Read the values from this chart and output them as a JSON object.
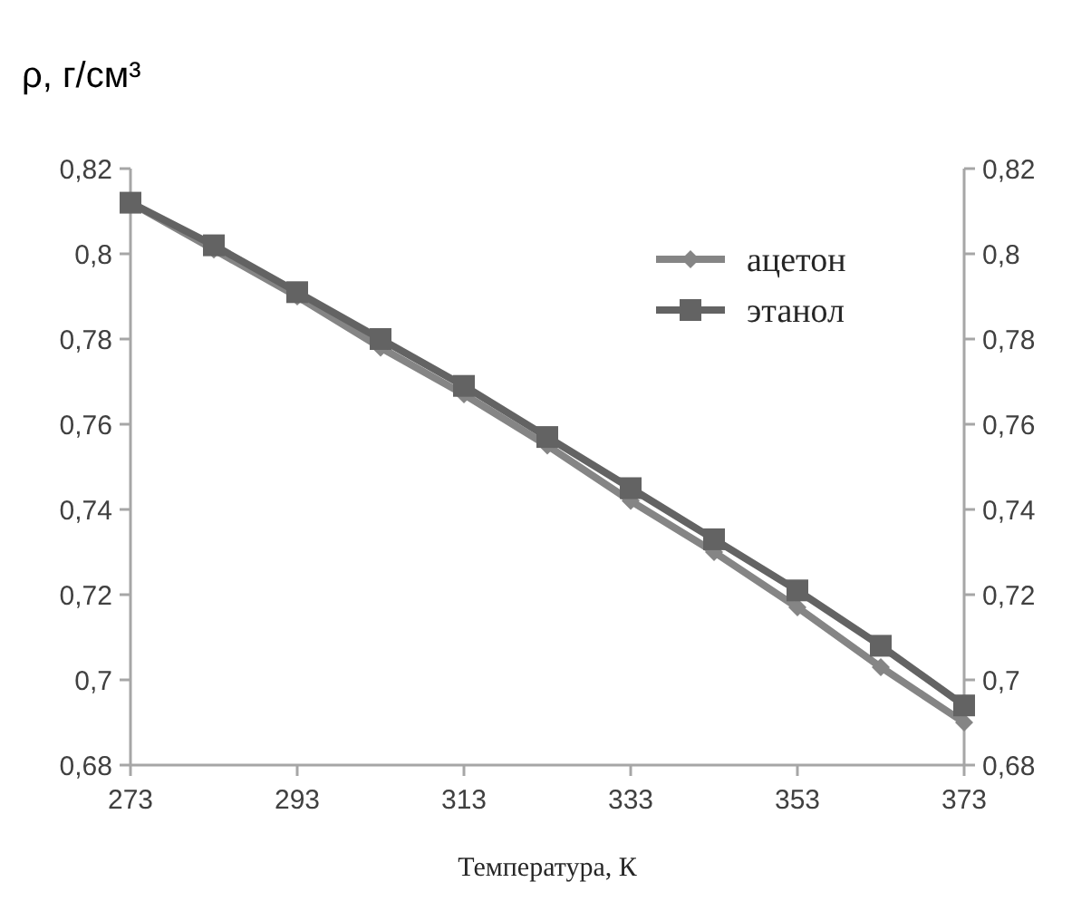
{
  "chart_data": {
    "type": "line",
    "ylabel": "ρ, г/см³",
    "xlabel": "Температура, К",
    "x": [
      273,
      283,
      293,
      303,
      313,
      323,
      333,
      343,
      353,
      363,
      373
    ],
    "series": [
      {
        "name": "ацетон",
        "color": "#858585",
        "marker": "diamond",
        "values": [
          0.812,
          0.801,
          0.79,
          0.778,
          0.767,
          0.755,
          0.742,
          0.73,
          0.717,
          0.703,
          0.69
        ]
      },
      {
        "name": "этанол",
        "color": "#636363",
        "marker": "square",
        "values": [
          0.812,
          0.802,
          0.791,
          0.78,
          0.769,
          0.757,
          0.745,
          0.733,
          0.721,
          0.708,
          0.694
        ]
      }
    ],
    "xlim": [
      273,
      373
    ],
    "xticks": [
      273,
      293,
      313,
      333,
      353,
      373
    ],
    "ylim": [
      0.68,
      0.82
    ],
    "yticks": [
      {
        "value": 0.68,
        "label": "0,68"
      },
      {
        "value": 0.7,
        "label": "0,7"
      },
      {
        "value": 0.72,
        "label": "0,72"
      },
      {
        "value": 0.74,
        "label": "0,74"
      },
      {
        "value": 0.76,
        "label": "0,76"
      },
      {
        "value": 0.78,
        "label": "0,78"
      },
      {
        "value": 0.8,
        "label": "0,8"
      },
      {
        "value": 0.82,
        "label": "0,82"
      }
    ],
    "y2lim": [
      0.68,
      0.82
    ],
    "y2ticks": [
      {
        "value": 0.68,
        "label": "0,68"
      },
      {
        "value": 0.7,
        "label": "0,7"
      },
      {
        "value": 0.72,
        "label": "0,72"
      },
      {
        "value": 0.74,
        "label": "0,74"
      },
      {
        "value": 0.76,
        "label": "0,76"
      },
      {
        "value": 0.78,
        "label": "0,78"
      },
      {
        "value": 0.8,
        "label": "0,8"
      },
      {
        "value": 0.82,
        "label": "0,82"
      }
    ],
    "grid": false,
    "legend": "top right",
    "line_style": "solid"
  }
}
